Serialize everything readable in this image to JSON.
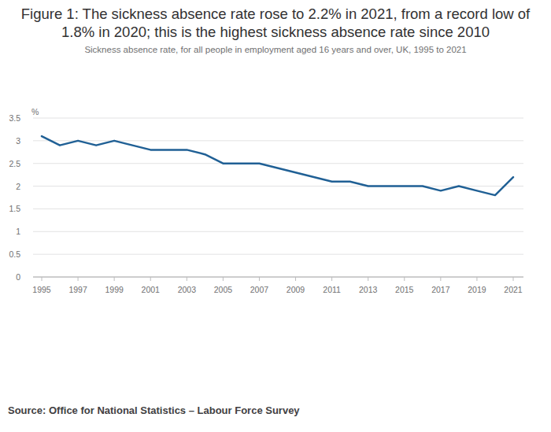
{
  "chart_data": {
    "type": "line",
    "title": "Figure 1: The sickness absence rate rose to 2.2% in 2021, from a record low of 1.8% in 2020; this is the highest sickness absence rate since 2010",
    "subtitle": "Sickness absence rate, for all people in employment aged 16 years and over, UK, 1995 to 2021",
    "y_label": "%",
    "source": "Source: Office for National Statistics – Labour Force Survey",
    "x": [
      1995,
      1996,
      1997,
      1998,
      1999,
      2000,
      2001,
      2002,
      2003,
      2004,
      2005,
      2006,
      2007,
      2008,
      2009,
      2010,
      2011,
      2012,
      2013,
      2014,
      2015,
      2016,
      2017,
      2018,
      2019,
      2020,
      2021
    ],
    "values": [
      3.1,
      2.9,
      3.0,
      2.9,
      3.0,
      2.9,
      2.8,
      2.8,
      2.8,
      2.7,
      2.5,
      2.5,
      2.5,
      2.4,
      2.3,
      2.2,
      2.1,
      2.1,
      2.0,
      2.0,
      2.0,
      2.0,
      1.9,
      2.0,
      1.9,
      1.8,
      2.2
    ],
    "color": "#206095",
    "xlim": [
      1995,
      2021
    ],
    "xticks": [
      1995,
      1997,
      1999,
      2001,
      2003,
      2005,
      2007,
      2009,
      2011,
      2013,
      2015,
      2017,
      2019,
      2021
    ],
    "ylim": [
      0,
      3.5
    ],
    "yticks": [
      0,
      0.5,
      1,
      1.5,
      2,
      2.5,
      3,
      3.5
    ],
    "grid": true
  }
}
